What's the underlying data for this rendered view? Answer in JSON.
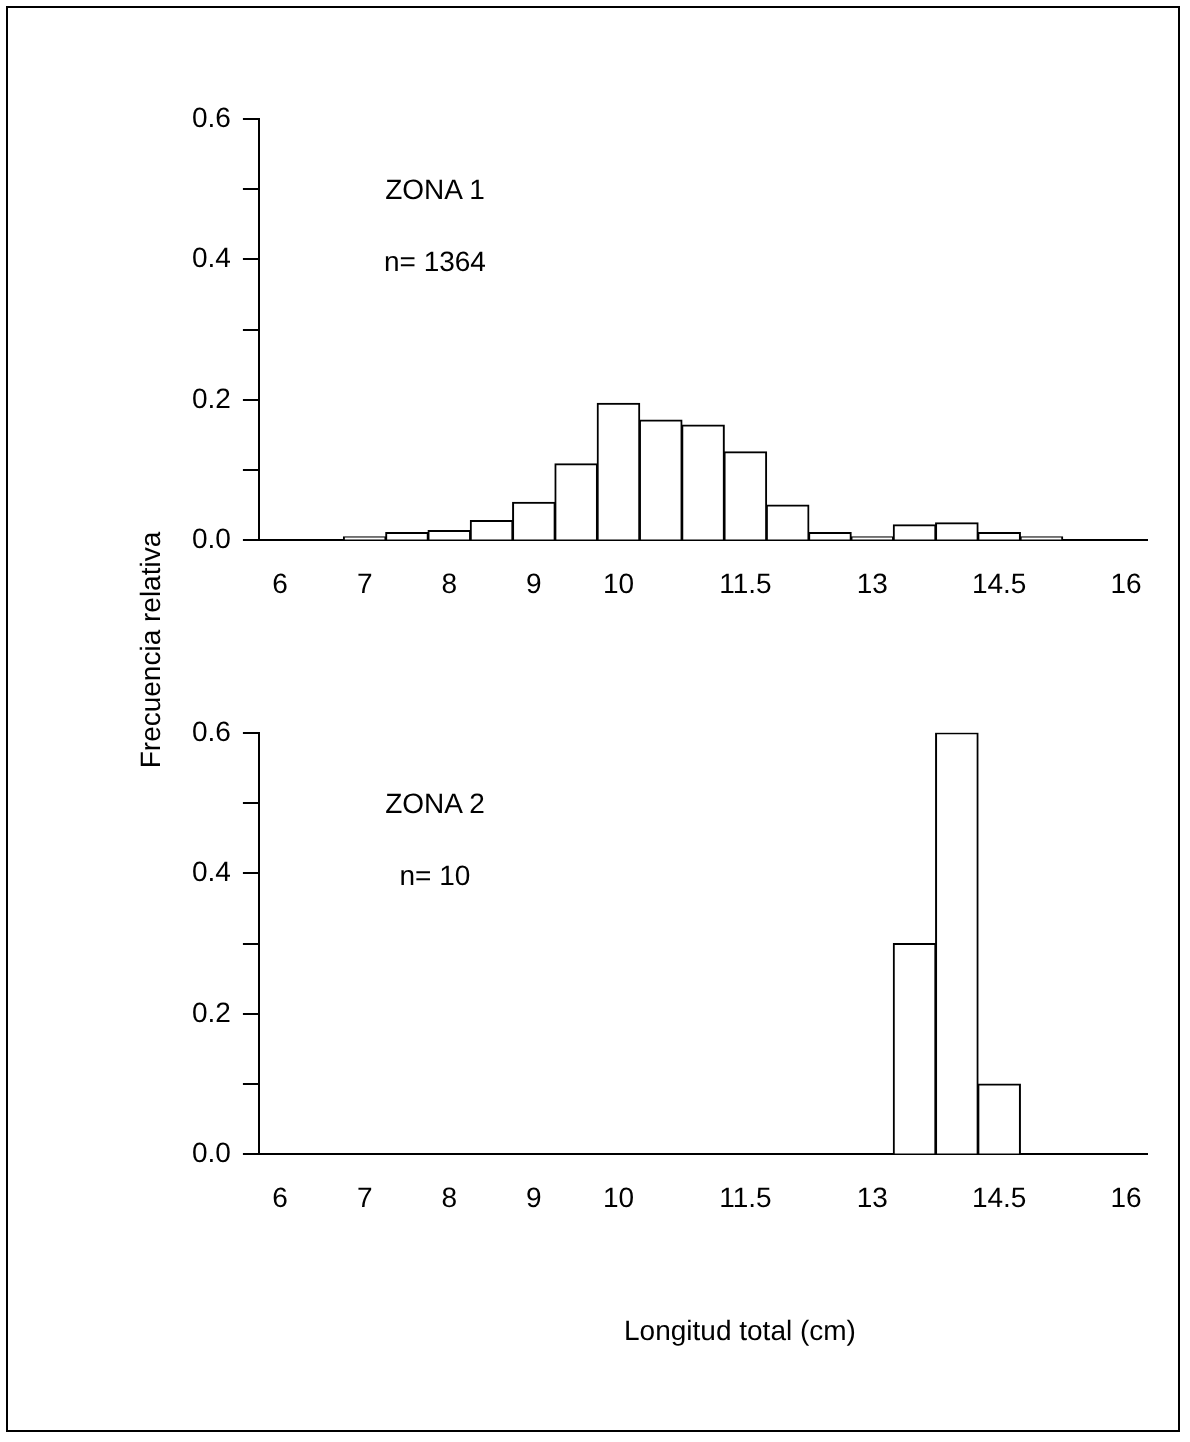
{
  "chart_data": [
    {
      "type": "bar",
      "ylabel": "Frecuencia relativa",
      "categories": [
        "6",
        null,
        "7",
        null,
        "8",
        null,
        "9",
        null,
        "10",
        null,
        null,
        "11.5",
        null,
        null,
        "13",
        null,
        null,
        "14.5",
        null,
        null,
        "16"
      ],
      "values": [
        0,
        0,
        0.005,
        0.011,
        0.014,
        0.028,
        0.054,
        0.109,
        0.195,
        0.171,
        0.164,
        0.126,
        0.05,
        0.011,
        0.005,
        0.022,
        0.025,
        0.011,
        0.005,
        0,
        0
      ],
      "color": "#ffffff",
      "ylim": [
        0,
        0.6
      ],
      "yticks": [
        {
          "value": 0,
          "label": "0.0"
        },
        {
          "value": 0.1,
          "label": null
        },
        {
          "value": 0.2,
          "label": "0.2"
        },
        {
          "value": 0.3,
          "label": null
        },
        {
          "value": 0.4,
          "label": "0.4"
        },
        {
          "value": 0.5,
          "label": null
        },
        {
          "value": 0.6,
          "label": "0.6"
        }
      ],
      "annotations": [
        "ZONA 1",
        "n= 1364"
      ],
      "grid": false,
      "legend": false
    },
    {
      "type": "bar",
      "xlabel": "Longitud total (cm)",
      "categories": [
        "6",
        null,
        "7",
        null,
        "8",
        null,
        "9",
        null,
        "10",
        null,
        null,
        "11.5",
        null,
        null,
        "13",
        null,
        null,
        "14.5",
        null,
        null,
        "16"
      ],
      "values": [
        0,
        0,
        0,
        0,
        0,
        0,
        0,
        0,
        0,
        0,
        0,
        0,
        0,
        0,
        0,
        0.3,
        0.6,
        0.1,
        0,
        0,
        0
      ],
      "color": "#ffffff",
      "ylim": [
        0,
        0.6
      ],
      "yticks": [
        {
          "value": 0,
          "label": "0.0"
        },
        {
          "value": 0.1,
          "label": null
        },
        {
          "value": 0.2,
          "label": "0.2"
        },
        {
          "value": 0.3,
          "label": null
        },
        {
          "value": 0.4,
          "label": "0.4"
        },
        {
          "value": 0.5,
          "label": null
        },
        {
          "value": 0.6,
          "label": "0.6"
        }
      ],
      "annotations": [
        "ZONA 2",
        "n= 10"
      ],
      "grid": false,
      "legend": false
    }
  ]
}
